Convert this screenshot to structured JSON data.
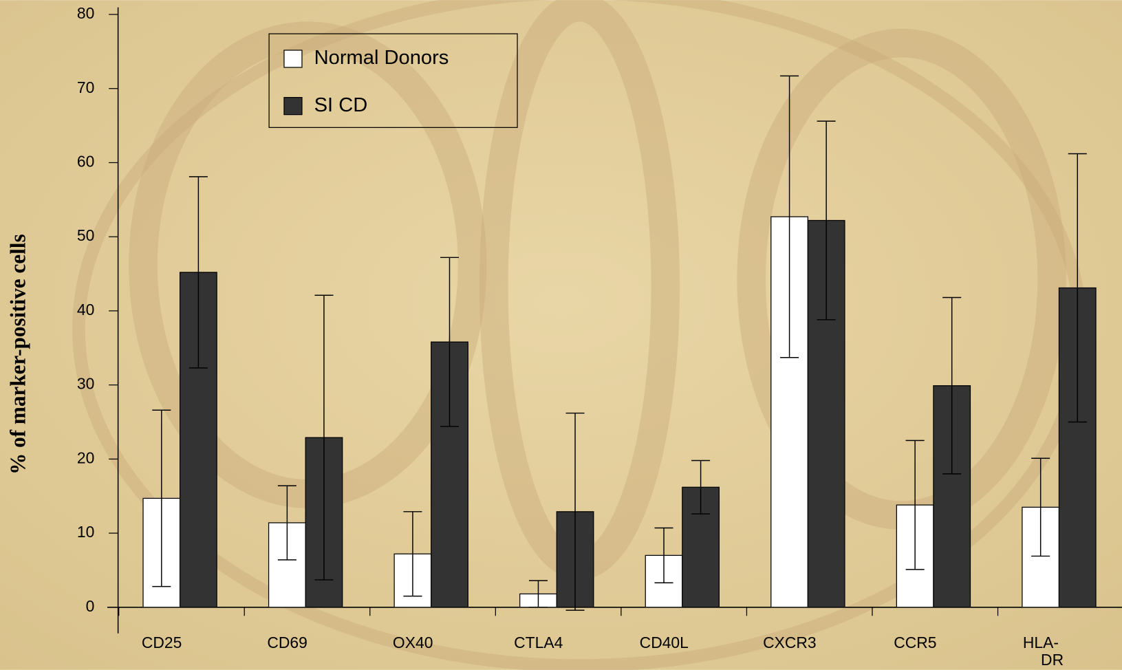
{
  "chart_data": {
    "type": "bar",
    "y_label": "% of marker-positive cells",
    "categories": [
      "CD25",
      "CD69",
      "OX40",
      "CTLA4",
      "CD40L",
      "CXCR3",
      "CCR5",
      "HLA-DR"
    ],
    "series": [
      {
        "name": "Normal Donors",
        "color": "#ffffff",
        "values": [
          14.7,
          11.4,
          7.2,
          1.8,
          7.0,
          52.7,
          13.8,
          13.5
        ],
        "errors": [
          11.9,
          5.0,
          5.7,
          1.8,
          3.7,
          19.0,
          8.7,
          6.6
        ]
      },
      {
        "name": "SI CD",
        "color": "#333333",
        "values": [
          45.2,
          22.9,
          35.8,
          12.9,
          16.2,
          52.2,
          29.9,
          43.1
        ],
        "errors": [
          12.9,
          19.2,
          11.4,
          13.3,
          3.6,
          13.4,
          11.9,
          18.1
        ]
      }
    ],
    "ylim": [
      0,
      80
    ],
    "yticks": [
      0,
      10,
      20,
      30,
      40,
      50,
      60,
      70,
      80
    ],
    "grid": false
  }
}
